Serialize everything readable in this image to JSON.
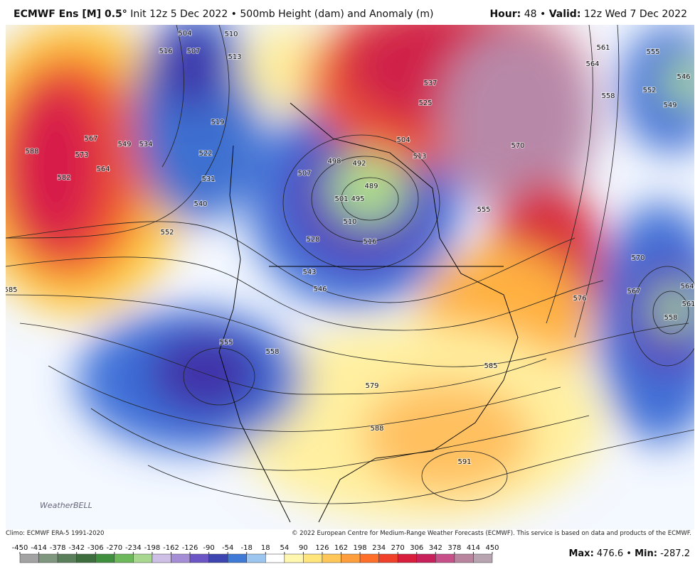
{
  "header": {
    "left_bold": "ECMWF Ens [M] 0.5°",
    "left": "Init 12z 5 Dec 2022 • 500mb Height (dam) and Anomaly (m)",
    "hour_label": "Hour:",
    "hour": "48 •",
    "valid_label": "Valid:",
    "valid": "12z Wed 7 Dec 2022"
  },
  "map": {
    "logo": "WeatherBELL",
    "contour_labels": [
      "516",
      "507",
      "504",
      "510",
      "513",
      "519",
      "522",
      "531",
      "540",
      "552",
      "549",
      "534",
      "564",
      "573",
      "567",
      "582",
      "588",
      "585",
      "498",
      "492",
      "489",
      "495",
      "501",
      "507",
      "510",
      "516",
      "528",
      "543",
      "546",
      "537",
      "525",
      "504",
      "513",
      "555",
      "570",
      "564",
      "561",
      "558",
      "555",
      "552",
      "546",
      "549",
      "570",
      "567",
      "564",
      "561",
      "558",
      "576",
      "555",
      "558",
      "579",
      "585",
      "588",
      "591"
    ]
  },
  "footer": {
    "climo": "Climo: ECMWF ERA-5 1991-2020",
    "copyright": "© 2022 European Centre for Medium-Range Weather Forecasts (ECMWF). This service is based on data and products of the ECMWF."
  },
  "colorbar": {
    "ticks": [
      -450,
      -414,
      -378,
      -342,
      -306,
      -270,
      -234,
      -198,
      -162,
      -126,
      -90,
      -54,
      -18,
      18,
      54,
      90,
      126,
      162,
      198,
      234,
      270,
      306,
      342,
      378,
      414,
      450
    ],
    "colors": [
      "#a3a3a3",
      "#7f967f",
      "#5a7f5a",
      "#3e6e3e",
      "#3f8f3f",
      "#6cb85a",
      "#a8d890",
      "#cdbfe6",
      "#a58ed6",
      "#6c55c4",
      "#3d45b0",
      "#3f7ad6",
      "#9cc6f0",
      "#ffffff",
      "#fff6b0",
      "#ffe57a",
      "#ffc65a",
      "#ff9e3d",
      "#ff6f2a",
      "#f0402a",
      "#d81e3c",
      "#c8205a",
      "#c8508a",
      "#b8849e",
      "#b8a4b0"
    ]
  },
  "stats": {
    "max_label": "Max:",
    "max": "476.6 •",
    "min_label": "Min:",
    "min": "-287.2"
  }
}
